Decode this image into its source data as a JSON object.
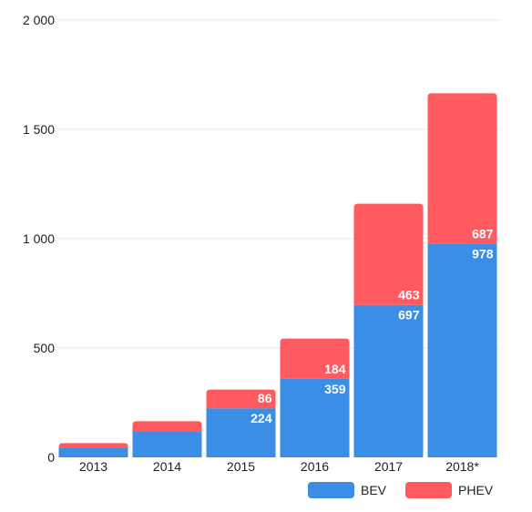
{
  "chart_data": {
    "type": "bar",
    "stacked": true,
    "categories": [
      "2013",
      "2014",
      "2015",
      "2016",
      "2017",
      "2018*"
    ],
    "series": [
      {
        "name": "BEV",
        "color": "#3b8ee5",
        "values": [
          45,
          120,
          224,
          359,
          697,
          978
        ]
      },
      {
        "name": "PHEV",
        "color": "#ff5a5f",
        "values": [
          20,
          45,
          86,
          184,
          463,
          687
        ]
      }
    ],
    "data_labels": {
      "BEV": [
        "",
        "",
        "224",
        "359",
        "697",
        "978"
      ],
      "PHEV": [
        "",
        "",
        "86",
        "184",
        "463",
        "687"
      ]
    },
    "yticks": [
      {
        "value": 0,
        "label": "0"
      },
      {
        "value": 500,
        "label": "500"
      },
      {
        "value": 1000,
        "label": "1 000"
      },
      {
        "value": 1500,
        "label": "1 500"
      },
      {
        "value": 2000,
        "label": "2 000"
      }
    ],
    "ylim": [
      0,
      2000
    ],
    "grid": true,
    "legend_position": "bottom-right",
    "title": "",
    "xlabel": "",
    "ylabel": ""
  }
}
